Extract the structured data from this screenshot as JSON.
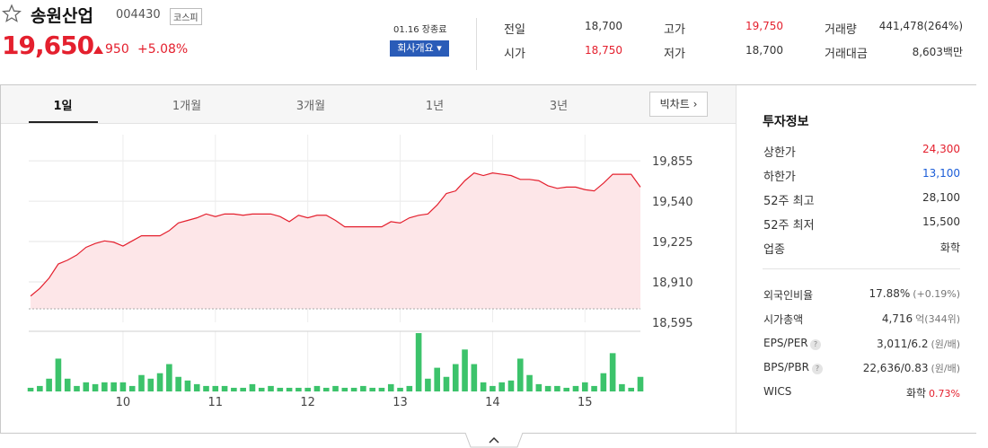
{
  "header": {
    "name": "송원산업",
    "code": "004430",
    "market": "코스피",
    "price": "19,650",
    "change": "950",
    "change_pct": "+5.08%",
    "status": "01.16 장종료",
    "company_button": "회사개요"
  },
  "quote": [
    {
      "label": "전일",
      "value": "18,700",
      "color": "#333333"
    },
    {
      "label": "고가",
      "value": "19,750",
      "color": "#e4202e"
    },
    {
      "label": "거래량",
      "value": "441,478(264%)",
      "color": "#333333"
    },
    {
      "label": "시가",
      "value": "18,750",
      "color": "#e4202e"
    },
    {
      "label": "저가",
      "value": "18,700",
      "color": "#333333"
    },
    {
      "label": "거래대금",
      "value": "8,603백만",
      "color": "#333333"
    }
  ],
  "tabs": [
    "1일",
    "1개월",
    "3개월",
    "1년",
    "3년"
  ],
  "big_chart": "빅차트",
  "invest": {
    "title": "투자정보",
    "rows": [
      {
        "label": "상한가",
        "value": "24,300",
        "color": "#e4202e"
      },
      {
        "label": "하한가",
        "value": "13,100",
        "color": "#1a5cd8"
      },
      {
        "label": "52주 최고",
        "value": "28,100",
        "color": "#333333"
      },
      {
        "label": "52주 최저",
        "value": "15,500",
        "color": "#333333"
      },
      {
        "label": "업종",
        "value": "화학",
        "color": "#333333"
      }
    ],
    "details": [
      {
        "label": "외국인비율",
        "value": "17.88%",
        "sub": "(+0.19%)",
        "sub_color": "#777777"
      },
      {
        "label": "시가총액",
        "value": "4,716",
        "sub": "억(344위)",
        "sub_color": "#777777"
      },
      {
        "label": "EPS/PER",
        "value": "3,011/6.2",
        "sub": "(원/배)",
        "sub_color": "#777777",
        "help": true
      },
      {
        "label": "BPS/PBR",
        "value": "22,636/0.83",
        "sub": "(원/배)",
        "sub_color": "#777777",
        "help": true
      },
      {
        "label": "WICS",
        "value": "화학",
        "sub": "0.73%",
        "sub_color": "#e4202e"
      }
    ]
  },
  "chart_data": {
    "type": "line",
    "color": "#e4202e",
    "fill": "#fde6e8",
    "x": [
      9.0,
      9.1,
      9.2,
      9.3,
      9.4,
      9.5,
      9.6,
      9.7,
      9.8,
      9.9,
      10.0,
      10.1,
      10.2,
      10.3,
      10.4,
      10.5,
      10.6,
      10.7,
      10.8,
      10.9,
      11.0,
      11.1,
      11.2,
      11.3,
      11.4,
      11.5,
      11.6,
      11.7,
      11.8,
      11.9,
      12.0,
      12.1,
      12.2,
      12.3,
      12.4,
      12.5,
      12.6,
      12.7,
      12.8,
      12.9,
      13.0,
      13.1,
      13.2,
      13.3,
      13.4,
      13.5,
      13.6,
      13.7,
      13.8,
      13.9,
      14.0,
      14.1,
      14.2,
      14.3,
      14.4,
      14.5,
      14.6,
      14.7,
      14.8,
      14.9,
      15.0,
      15.1,
      15.2,
      15.3,
      15.4,
      15.5,
      15.6
    ],
    "values": [
      18800,
      18860,
      18940,
      19050,
      19080,
      19120,
      19180,
      19210,
      19230,
      19220,
      19190,
      19230,
      19270,
      19270,
      19270,
      19310,
      19370,
      19390,
      19410,
      19440,
      19420,
      19440,
      19440,
      19430,
      19440,
      19440,
      19440,
      19420,
      19380,
      19430,
      19410,
      19430,
      19430,
      19390,
      19340,
      19340,
      19340,
      19340,
      19340,
      19380,
      19370,
      19410,
      19430,
      19440,
      19510,
      19600,
      19620,
      19700,
      19760,
      19740,
      19760,
      19750,
      19740,
      19710,
      19710,
      19700,
      19660,
      19640,
      19650,
      19650,
      19630,
      19620,
      19680,
      19750,
      19750,
      19750,
      19650
    ],
    "reference": 18700,
    "xlim": [
      8.98,
      15.6
    ],
    "xticks": [
      10,
      11,
      12,
      13,
      14,
      15
    ],
    "ylim": [
      18595,
      19855.7
    ],
    "yticks": [
      {
        "value": 19855,
        "label": "19,855"
      },
      {
        "value": 19540,
        "label": "19,540"
      },
      {
        "value": 19225,
        "label": "19,225"
      },
      {
        "value": 18910,
        "label": "18,910"
      },
      {
        "value": 18595,
        "label": "18,595"
      }
    ],
    "grid": true,
    "volume": {
      "type": "bar",
      "color": "#3cc36b",
      "ylim": [
        0,
        66
      ],
      "values": [
        4,
        6,
        14,
        36,
        14,
        6,
        10,
        8,
        10,
        10,
        10,
        6,
        18,
        14,
        20,
        30,
        16,
        12,
        8,
        6,
        6,
        6,
        4,
        4,
        8,
        4,
        6,
        4,
        4,
        4,
        4,
        6,
        4,
        6,
        4,
        4,
        6,
        4,
        4,
        8,
        4,
        6,
        64,
        14,
        26,
        16,
        30,
        46,
        30,
        10,
        6,
        10,
        12,
        36,
        18,
        8,
        6,
        6,
        4,
        6,
        10,
        6,
        20,
        42,
        8,
        4,
        16
      ]
    }
  }
}
